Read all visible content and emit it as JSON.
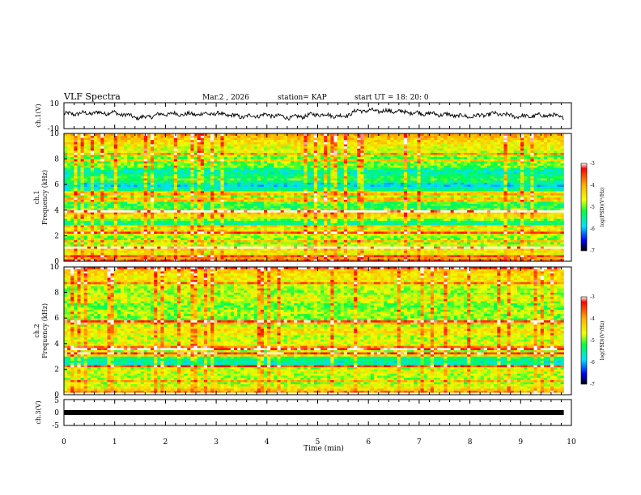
{
  "header": {
    "title": "VLF Spectra",
    "date": "Mar.2  , 2026",
    "station": "station= KAP",
    "start": "start  UT  =   18: 20: 0"
  },
  "colors": {
    "waveform": "#000000",
    "bar": "#000000"
  },
  "chart_data": [
    {
      "type": "line",
      "name": "ch1-waveform",
      "ylabel": "ch.1(V)",
      "ylim": [
        -10,
        10
      ],
      "ytick_labels": [
        "10",
        "-10"
      ],
      "xlim": [
        0,
        10
      ],
      "x_end": 9.85,
      "approx_levels": [
        {
          "x": 0.0,
          "y": 1.2
        },
        {
          "x": 0.5,
          "y": 2.0
        },
        {
          "x": 1.0,
          "y": 2.2
        },
        {
          "x": 1.5,
          "y": -1.8
        },
        {
          "x": 2.0,
          "y": 1.5
        },
        {
          "x": 2.5,
          "y": 1.0
        },
        {
          "x": 3.0,
          "y": 1.6
        },
        {
          "x": 3.5,
          "y": -0.8
        },
        {
          "x": 4.0,
          "y": 0.6
        },
        {
          "x": 4.5,
          "y": -1.5
        },
        {
          "x": 5.0,
          "y": 1.2
        },
        {
          "x": 5.5,
          "y": -0.6
        },
        {
          "x": 5.8,
          "y": 4.0
        },
        {
          "x": 6.5,
          "y": 3.4
        },
        {
          "x": 7.0,
          "y": 2.0
        },
        {
          "x": 7.5,
          "y": 0.8
        },
        {
          "x": 8.0,
          "y": -0.8
        },
        {
          "x": 8.5,
          "y": 1.5
        },
        {
          "x": 9.0,
          "y": -0.8
        },
        {
          "x": 9.5,
          "y": 0.4
        },
        {
          "x": 9.85,
          "y": -0.8
        }
      ]
    },
    {
      "type": "heatmap",
      "name": "ch1-spectrogram",
      "ylabel": "ch.1",
      "ylabel2": "Frequency  (kHz)",
      "ylim": [
        0,
        10
      ],
      "ytick_labels": [
        "0",
        "2",
        "4",
        "6",
        "8",
        "10"
      ],
      "xlim": [
        0,
        10
      ],
      "x_end": 9.85,
      "value_range": [
        -7,
        -3
      ],
      "band_profile": [
        {
          "f": 0.0,
          "v": -3.4
        },
        {
          "f": 0.5,
          "v": -4.6
        },
        {
          "f": 1.0,
          "v": -4.4
        },
        {
          "f": 1.5,
          "v": -5.0
        },
        {
          "f": 2.0,
          "v": -4.9
        },
        {
          "f": 2.3,
          "v": -4.1
        },
        {
          "f": 2.7,
          "v": -5.0
        },
        {
          "f": 3.0,
          "v": -5.6
        },
        {
          "f": 3.4,
          "v": -4.6
        },
        {
          "f": 3.8,
          "v": -4.2
        },
        {
          "f": 4.2,
          "v": -5.3
        },
        {
          "f": 4.8,
          "v": -5.0
        },
        {
          "f": 5.2,
          "v": -4.8
        },
        {
          "f": 5.6,
          "v": -5.4
        },
        {
          "f": 6.0,
          "v": -5.9
        },
        {
          "f": 6.4,
          "v": -5.1
        },
        {
          "f": 7.0,
          "v": -5.7
        },
        {
          "f": 7.5,
          "v": -4.9
        },
        {
          "f": 8.0,
          "v": -5.1
        },
        {
          "f": 8.5,
          "v": -4.7
        },
        {
          "f": 9.0,
          "v": -4.6
        },
        {
          "f": 9.5,
          "v": -4.3
        },
        {
          "f": 10.0,
          "v": -3.9
        }
      ],
      "colorbar": {
        "label": "log(PSD)(V²/Hz)",
        "tick_labels": [
          "-3",
          "-4",
          "-5",
          "-6",
          "-7"
        ]
      }
    },
    {
      "type": "heatmap",
      "name": "ch2-spectrogram",
      "ylabel": "ch.2",
      "ylabel2": "Frequency  (kHz)",
      "ylim": [
        0,
        10
      ],
      "ytick_labels": [
        "0",
        "2",
        "4",
        "6",
        "8",
        "10"
      ],
      "xlim": [
        0,
        10
      ],
      "x_end": 9.85,
      "value_range": [
        -7,
        -3
      ],
      "band_profile": [
        {
          "f": 0.0,
          "v": -3.3
        },
        {
          "f": 0.5,
          "v": -4.5
        },
        {
          "f": 1.0,
          "v": -4.9
        },
        {
          "f": 1.5,
          "v": -4.8
        },
        {
          "f": 2.0,
          "v": -4.6
        },
        {
          "f": 2.5,
          "v": -5.7
        },
        {
          "f": 3.0,
          "v": -5.2
        },
        {
          "f": 3.5,
          "v": -4.7
        },
        {
          "f": 4.0,
          "v": -4.6
        },
        {
          "f": 4.5,
          "v": -4.8
        },
        {
          "f": 5.0,
          "v": -4.3
        },
        {
          "f": 5.5,
          "v": -4.9
        },
        {
          "f": 6.0,
          "v": -5.0
        },
        {
          "f": 6.5,
          "v": -4.8
        },
        {
          "f": 7.0,
          "v": -5.1
        },
        {
          "f": 7.5,
          "v": -4.6
        },
        {
          "f": 8.0,
          "v": -4.9
        },
        {
          "f": 8.5,
          "v": -4.7
        },
        {
          "f": 9.0,
          "v": -4.5
        },
        {
          "f": 9.5,
          "v": -4.4
        },
        {
          "f": 10.0,
          "v": -4.0
        }
      ],
      "colorbar": {
        "label": "log(PSD)(V²/Hz)",
        "tick_labels": [
          "-3",
          "-4",
          "-5",
          "-6",
          "-7"
        ]
      }
    },
    {
      "type": "line",
      "name": "ch3-waveform",
      "ylabel": "ch.3(V)",
      "ylim": [
        -5,
        5
      ],
      "ytick_labels": [
        "5",
        "0",
        "-5"
      ],
      "xlim": [
        0,
        10
      ],
      "x_end": 9.85,
      "constant_value": 0,
      "xlabel": "Time  (min)",
      "xtick_labels": [
        "0",
        "1",
        "2",
        "3",
        "4",
        "5",
        "6",
        "7",
        "8",
        "9",
        "10"
      ]
    }
  ]
}
